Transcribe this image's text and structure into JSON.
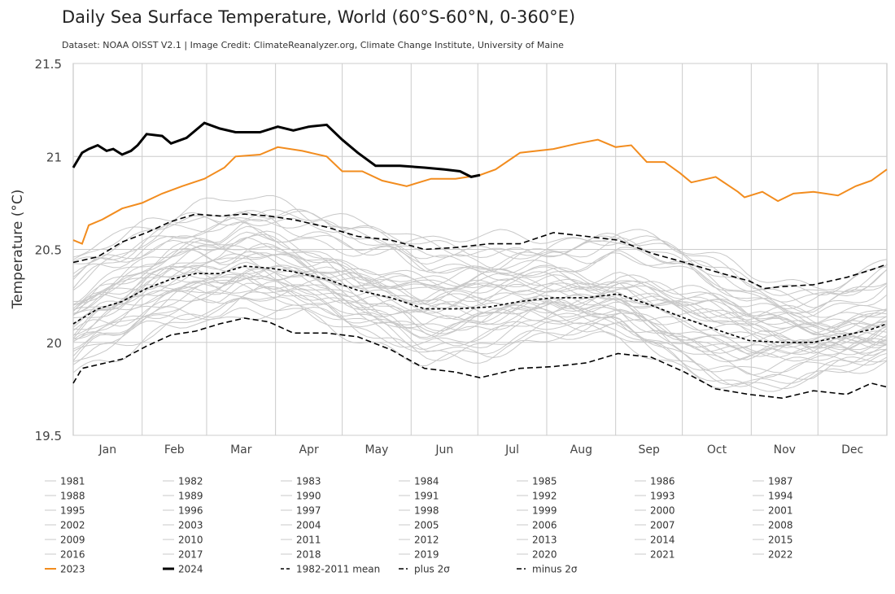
{
  "chart_data": {
    "type": "line",
    "title": "Daily Sea Surface Temperature, World (60°S-60°N, 0-360°E)",
    "subtitle": "Dataset: NOAA OISST V2.1 | Image Credit: ClimateReanalyzer.org, Climate Change Institute, University of Maine",
    "ylabel": "Temperature (°C)",
    "xlabel": "",
    "ylim": [
      19.5,
      21.5
    ],
    "yticks": [
      21.5,
      21,
      20.5,
      20,
      19.5
    ],
    "ytick_labels": [
      "21.5",
      "21",
      "20.5",
      "20",
      "19.5"
    ],
    "months": [
      "Jan",
      "Feb",
      "Mar",
      "Apr",
      "May",
      "Jun",
      "Jul",
      "Aug",
      "Sep",
      "Oct",
      "Nov",
      "Dec"
    ],
    "month_days": [
      31,
      29,
      31,
      30,
      31,
      30,
      31,
      31,
      30,
      31,
      30,
      31
    ],
    "grid": true,
    "legend_position": "bottom",
    "colors": {
      "years": "#c8c8c8",
      "y2023": "#f28c1e",
      "y2024": "#000000",
      "mean": "#000000"
    },
    "series_2023": {
      "name": "2023",
      "day": [
        0,
        4,
        7,
        13,
        22,
        31,
        40,
        49,
        59,
        68,
        73,
        84,
        92,
        103,
        114,
        121,
        130,
        139,
        150,
        161,
        172,
        183,
        190,
        201,
        216,
        227,
        236,
        244,
        251,
        258,
        266,
        273,
        278,
        289,
        299,
        302,
        310,
        317,
        324,
        333,
        344,
        352,
        359,
        366
      ],
      "value": [
        20.55,
        20.53,
        20.63,
        20.66,
        20.72,
        20.75,
        20.8,
        20.84,
        20.88,
        20.94,
        21.0,
        21.01,
        21.05,
        21.03,
        21.0,
        20.92,
        20.92,
        20.87,
        20.84,
        20.88,
        20.88,
        20.9,
        20.93,
        21.02,
        21.04,
        21.07,
        21.09,
        21.05,
        21.06,
        20.97,
        20.97,
        20.91,
        20.86,
        20.89,
        20.81,
        20.78,
        20.81,
        20.76,
        20.8,
        20.81,
        20.79,
        20.84,
        20.87,
        20.93
      ]
    },
    "series_2024": {
      "name": "2024",
      "day": [
        0,
        4,
        7,
        11,
        15,
        18,
        22,
        26,
        29,
        33,
        40,
        44,
        51,
        59,
        66,
        73,
        84,
        92,
        99,
        106,
        114,
        121,
        128,
        136,
        147,
        158,
        167,
        174,
        179,
        183
      ],
      "value": [
        20.94,
        21.02,
        21.04,
        21.06,
        21.03,
        21.04,
        21.01,
        21.03,
        21.06,
        21.12,
        21.11,
        21.07,
        21.1,
        21.18,
        21.15,
        21.13,
        21.13,
        21.16,
        21.14,
        21.16,
        21.17,
        21.09,
        21.02,
        20.95,
        20.95,
        20.94,
        20.93,
        20.92,
        20.89,
        20.9
      ]
    },
    "mean": {
      "name": "1982-2011 mean",
      "day": [
        0,
        11,
        22,
        33,
        44,
        55,
        66,
        77,
        88,
        99,
        114,
        128,
        143,
        158,
        172,
        187,
        201,
        216,
        231,
        245,
        260,
        275,
        289,
        304,
        319,
        333,
        348,
        359,
        366
      ],
      "value": [
        20.1,
        20.18,
        20.22,
        20.29,
        20.34,
        20.37,
        20.37,
        20.41,
        20.4,
        20.38,
        20.34,
        20.28,
        20.24,
        20.18,
        20.18,
        20.19,
        20.22,
        20.24,
        20.24,
        20.26,
        20.2,
        20.13,
        20.07,
        20.01,
        20.0,
        20.0,
        20.04,
        20.07,
        20.1
      ]
    },
    "plus2": {
      "name": "plus 2σ",
      "day": [
        0,
        11,
        22,
        33,
        44,
        55,
        66,
        77,
        88,
        99,
        114,
        128,
        143,
        158,
        172,
        187,
        201,
        216,
        231,
        245,
        260,
        275,
        289,
        304,
        311,
        319,
        333,
        348,
        359,
        366
      ],
      "value": [
        20.43,
        20.46,
        20.54,
        20.59,
        20.65,
        20.69,
        20.68,
        20.69,
        20.68,
        20.66,
        20.62,
        20.57,
        20.55,
        20.5,
        20.51,
        20.53,
        20.53,
        20.59,
        20.57,
        20.55,
        20.48,
        20.43,
        20.38,
        20.33,
        20.29,
        20.3,
        20.31,
        20.35,
        20.39,
        20.42
      ]
    },
    "minus2": {
      "name": "minus 2σ",
      "day": [
        0,
        4,
        22,
        33,
        44,
        55,
        66,
        77,
        88,
        99,
        114,
        128,
        143,
        158,
        172,
        183,
        201,
        216,
        231,
        245,
        260,
        275,
        289,
        304,
        319,
        333,
        348,
        359,
        366
      ],
      "value": [
        19.78,
        19.86,
        19.91,
        19.98,
        20.04,
        20.06,
        20.1,
        20.13,
        20.11,
        20.05,
        20.05,
        20.03,
        19.96,
        19.86,
        19.84,
        19.81,
        19.86,
        19.87,
        19.89,
        19.94,
        19.92,
        19.84,
        19.75,
        19.72,
        19.7,
        19.74,
        19.72,
        19.78,
        19.76
      ]
    },
    "year_offsets": {
      "1981": -0.2,
      "1982": -0.22,
      "1983": -0.12,
      "1984": -0.2,
      "1985": -0.24,
      "1986": -0.18,
      "1987": -0.06,
      "1988": -0.08,
      "1989": -0.16,
      "1990": -0.06,
      "1991": -0.08,
      "1992": -0.12,
      "1993": -0.1,
      "1994": -0.08,
      "1995": -0.04,
      "1996": -0.08,
      "1997": 0.02,
      "1998": 0.12,
      "1999": -0.02,
      "2000": -0.04,
      "2001": 0.04,
      "2002": 0.06,
      "2003": 0.08,
      "2004": 0.06,
      "2005": 0.1,
      "2006": 0.08,
      "2007": 0.02,
      "2008": 0.0,
      "2009": 0.12,
      "2010": 0.14,
      "2011": 0.02,
      "2012": 0.1,
      "2013": 0.1,
      "2014": 0.2,
      "2015": 0.28,
      "2016": 0.34,
      "2017": 0.26,
      "2018": 0.22,
      "2019": 0.3,
      "2020": 0.32,
      "2021": 0.24,
      "2022": 0.26
    }
  },
  "legend": {
    "items": [
      "1981",
      "1982",
      "1983",
      "1984",
      "1985",
      "1986",
      "1987",
      "1988",
      "1989",
      "1990",
      "1991",
      "1992",
      "1993",
      "1994",
      "1995",
      "1996",
      "1997",
      "1998",
      "1999",
      "2000",
      "2001",
      "2002",
      "2003",
      "2004",
      "2005",
      "2006",
      "2007",
      "2008",
      "2009",
      "2010",
      "2011",
      "2012",
      "2013",
      "2014",
      "2015",
      "2016",
      "2017",
      "2018",
      "2019",
      "2020",
      "2021",
      "2022",
      "2023",
      "2024",
      "1982-2011 mean",
      "plus 2σ",
      "minus 2σ"
    ]
  }
}
